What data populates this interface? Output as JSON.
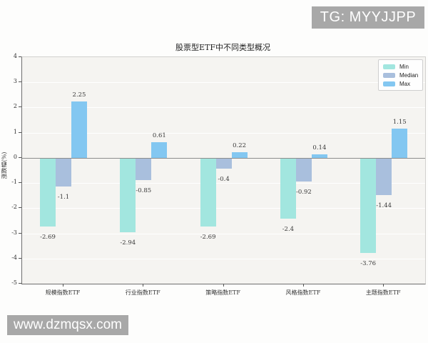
{
  "watermarks": {
    "top_right": "TG: MYYJJPP",
    "bottom_left": "www.dzmqsx.com"
  },
  "chart_data": {
    "type": "bar",
    "title": "股票型ETF中不同类型概况",
    "xlabel": "",
    "ylabel": "涨跌幅(%)",
    "categories": [
      "规模指数ETF",
      "行业指数ETF",
      "策略指数ETF",
      "风格指数ETF",
      "主题指数ETF"
    ],
    "series": [
      {
        "name": "Min",
        "color": "#a2e6df",
        "values": [
          -2.69,
          -2.94,
          -2.69,
          -2.4,
          -3.76
        ],
        "labels": [
          "-2.69",
          "-2.94",
          "-2.69",
          "-2.4",
          "-3.76"
        ]
      },
      {
        "name": "Median",
        "color": "#a9bfdd",
        "values": [
          -1.1,
          -0.85,
          -0.4,
          -0.92,
          -1.44
        ],
        "labels": [
          "-1.1",
          "-0.85",
          "-0.4",
          "-0.92",
          "-1.44"
        ]
      },
      {
        "name": "Max",
        "color": "#83c7f1",
        "values": [
          2.25,
          0.61,
          0.22,
          0.14,
          1.15
        ],
        "labels": [
          "2.25",
          "0.61",
          "0.22",
          "0.14",
          "1.15"
        ]
      }
    ],
    "ylim": [
      -5,
      4
    ],
    "yticks": [
      4,
      3,
      2,
      1,
      0,
      -1,
      -2,
      -3,
      -4,
      -5
    ],
    "grid": true,
    "grid_color": "#ffffff",
    "plot_background": "#f5f4f1",
    "zero_line_color": "#8d8d8d",
    "legend_position": "upper right",
    "legend_entries": [
      "Min",
      "Median",
      "Max"
    ]
  }
}
